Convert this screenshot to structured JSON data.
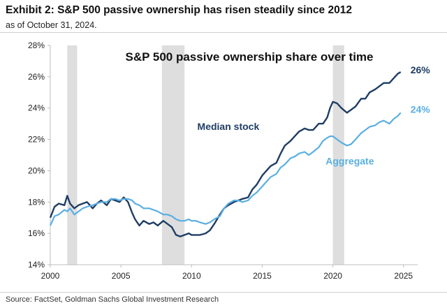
{
  "header": {
    "title": "Exhibit 2: S&P 500 passive ownership has risen steadily since 2012",
    "subtitle": "as of October 31, 2024."
  },
  "footer": {
    "source": "Source: FactSet, Goldman Sachs Global Investment Research"
  },
  "chart_data": {
    "type": "line",
    "title": "S&P 500 passive ownership share over time",
    "xlabel": "",
    "ylabel": "",
    "xlim": [
      2000,
      2026
    ],
    "ylim": [
      14,
      28
    ],
    "x_ticks": [
      2000,
      2005,
      2010,
      2015,
      2020,
      2025
    ],
    "x_tick_labels": [
      "2000",
      "2005",
      "2010",
      "2015",
      "2020",
      "2025"
    ],
    "y_ticks": [
      14,
      16,
      18,
      20,
      22,
      24,
      26,
      28
    ],
    "y_tick_labels": [
      "14%",
      "16%",
      "18%",
      "20%",
      "22%",
      "24%",
      "26%",
      "28%"
    ],
    "grid": false,
    "legend": "inline labels",
    "shaded_periods": [
      [
        2001.2,
        2001.9
      ],
      [
        2007.9,
        2009.5
      ],
      [
        2020.0,
        2020.8
      ]
    ],
    "shade_color": "#dedede",
    "series": [
      {
        "name": "Median stock",
        "color": "#1f3d64",
        "end_label": "26%",
        "x": [
          2000.0,
          2000.3,
          2000.6,
          2001.0,
          2001.2,
          2001.4,
          2001.7,
          2002.0,
          2002.3,
          2002.6,
          2003.0,
          2003.3,
          2003.6,
          2004.0,
          2004.3,
          2004.6,
          2004.9,
          2005.2,
          2005.5,
          2005.8,
          2006.0,
          2006.3,
          2006.6,
          2007.0,
          2007.3,
          2007.6,
          2008.0,
          2008.3,
          2008.6,
          2008.9,
          2009.2,
          2009.5,
          2009.8,
          2010.0,
          2010.3,
          2010.6,
          2011.0,
          2011.3,
          2011.6,
          2012.0,
          2012.3,
          2012.6,
          2013.0,
          2013.3,
          2013.6,
          2014.0,
          2014.3,
          2014.6,
          2015.0,
          2015.3,
          2015.6,
          2016.0,
          2016.3,
          2016.6,
          2017.0,
          2017.3,
          2017.6,
          2018.0,
          2018.3,
          2018.6,
          2019.0,
          2019.3,
          2019.6,
          2019.8,
          2020.0,
          2020.3,
          2020.6,
          2021.0,
          2021.3,
          2021.6,
          2022.0,
          2022.3,
          2022.6,
          2023.0,
          2023.3,
          2023.6,
          2024.0,
          2024.3,
          2024.6,
          2024.8
        ],
        "values": [
          17.0,
          17.7,
          17.9,
          17.8,
          18.4,
          17.9,
          17.6,
          17.8,
          17.9,
          18.0,
          17.6,
          17.9,
          18.1,
          17.8,
          18.2,
          18.1,
          18.0,
          18.3,
          18.0,
          17.3,
          16.9,
          16.5,
          16.8,
          16.6,
          16.7,
          16.5,
          16.8,
          16.6,
          16.4,
          15.9,
          15.8,
          15.9,
          16.0,
          15.9,
          15.9,
          15.9,
          16.0,
          16.2,
          16.6,
          17.2,
          17.6,
          17.8,
          18.0,
          18.1,
          18.2,
          18.3,
          18.8,
          19.1,
          19.7,
          20.0,
          20.3,
          20.5,
          21.1,
          21.6,
          21.9,
          22.2,
          22.5,
          22.7,
          22.6,
          22.6,
          23.0,
          23.0,
          23.4,
          24.0,
          24.4,
          24.3,
          24.0,
          23.7,
          23.9,
          24.1,
          24.6,
          24.6,
          25.0,
          25.2,
          25.4,
          25.6,
          25.6,
          25.9,
          26.2,
          26.3
        ]
      },
      {
        "name": "Aggregate",
        "color": "#5aafe2",
        "end_label": "24%",
        "x": [
          2000.0,
          2000.3,
          2000.6,
          2001.0,
          2001.2,
          2001.4,
          2001.7,
          2002.0,
          2002.3,
          2002.6,
          2003.0,
          2003.3,
          2003.6,
          2004.0,
          2004.3,
          2004.6,
          2004.9,
          2005.2,
          2005.5,
          2005.8,
          2006.0,
          2006.3,
          2006.6,
          2007.0,
          2007.3,
          2007.6,
          2008.0,
          2008.3,
          2008.6,
          2008.9,
          2009.2,
          2009.5,
          2009.8,
          2010.0,
          2010.3,
          2010.6,
          2011.0,
          2011.3,
          2011.6,
          2012.0,
          2012.3,
          2012.6,
          2013.0,
          2013.3,
          2013.6,
          2014.0,
          2014.3,
          2014.6,
          2015.0,
          2015.3,
          2015.6,
          2016.0,
          2016.3,
          2016.6,
          2017.0,
          2017.3,
          2017.6,
          2018.0,
          2018.3,
          2018.6,
          2019.0,
          2019.3,
          2019.6,
          2019.8,
          2020.0,
          2020.3,
          2020.6,
          2021.0,
          2021.3,
          2021.6,
          2022.0,
          2022.3,
          2022.6,
          2023.0,
          2023.3,
          2023.6,
          2024.0,
          2024.3,
          2024.6,
          2024.8
        ],
        "values": [
          16.5,
          17.1,
          17.2,
          17.5,
          17.4,
          17.6,
          17.2,
          17.4,
          17.6,
          17.7,
          17.8,
          17.9,
          18.0,
          18.0,
          18.2,
          18.2,
          18.1,
          18.2,
          18.2,
          18.1,
          17.9,
          17.8,
          17.6,
          17.6,
          17.5,
          17.4,
          17.2,
          17.2,
          17.1,
          16.9,
          16.8,
          16.8,
          16.9,
          16.8,
          16.8,
          16.7,
          16.6,
          16.7,
          16.9,
          17.1,
          17.6,
          17.9,
          18.1,
          18.1,
          18.0,
          18.1,
          18.4,
          18.6,
          19.0,
          19.3,
          19.6,
          19.8,
          20.2,
          20.4,
          20.8,
          20.9,
          21.1,
          21.2,
          21.0,
          21.2,
          21.5,
          21.9,
          22.1,
          22.2,
          22.2,
          22.0,
          21.8,
          21.6,
          21.7,
          22.0,
          22.4,
          22.6,
          22.8,
          22.9,
          23.1,
          23.2,
          23.0,
          23.3,
          23.5,
          23.7
        ]
      }
    ],
    "annotations": [
      {
        "text": "Median stock",
        "color": "#1f3d64",
        "x": 2012.6,
        "y": 22.6
      },
      {
        "text": "Aggregate",
        "color": "#5aafe2",
        "x": 2021.2,
        "y": 20.4
      }
    ]
  }
}
